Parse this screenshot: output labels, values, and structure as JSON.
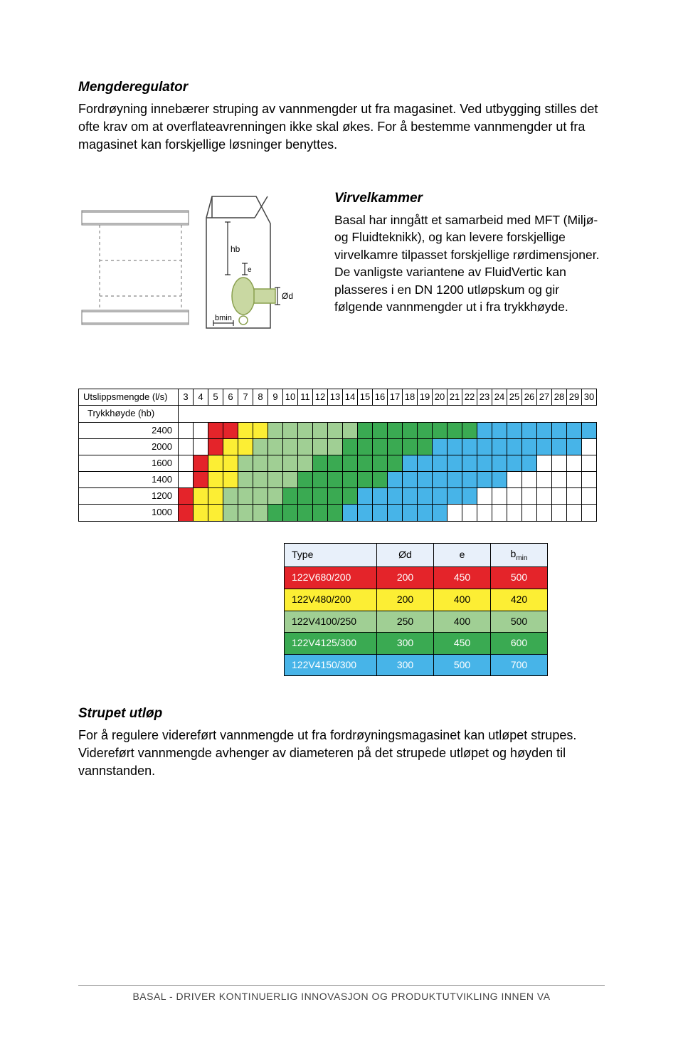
{
  "section1": {
    "heading": "Mengderegulator",
    "body": "Fordrøyning innebærer struping av vannmengder ut fra magasinet. Ved utbygging stilles det ofte krav om at overflateavrenningen ikke skal økes. For å bestemme vannmengder ut fra magasinet kan forskjellige løsninger benyttes."
  },
  "diagram_labels": {
    "hb": "hb",
    "e": "e",
    "od": "Ød",
    "bmin": "bmin"
  },
  "section2": {
    "heading": "Virvelkammer",
    "body": "Basal har inngått et samarbeid med MFT (Miljø- og Fluidteknikk), og kan levere forskjellige virvelkamre tilpasset forskjellige rørdimensjoner. De vanligste variantene av FluidVertic kan plasseres i en DN 1200 utløpskum og gir følgende vannmengder ut i fra trykkhøyde."
  },
  "colormap": {
    "header_label": "Utslippsmengde (l/s)",
    "row_label": "Trykkhøyde (hb)",
    "columns": [
      3,
      4,
      5,
      6,
      7,
      8,
      9,
      10,
      11,
      12,
      13,
      14,
      15,
      16,
      17,
      18,
      19,
      20,
      21,
      22,
      23,
      24,
      25,
      26,
      27,
      28,
      29,
      30
    ],
    "rows": [
      2400,
      2000,
      1600,
      1400,
      1200,
      1000
    ],
    "colors": {
      "r": "#e4242a",
      "y": "#fcee34",
      "l": "#a0cf94",
      "g": "#3aaa52",
      "b": "#47b4e8",
      "w": "#ffffff"
    },
    "grid": [
      [
        "w",
        "w",
        "r",
        "r",
        "y",
        "y",
        "l",
        "l",
        "l",
        "l",
        "l",
        "l",
        "g",
        "g",
        "g",
        "g",
        "g",
        "g",
        "g",
        "g",
        "b",
        "b",
        "b",
        "b",
        "b",
        "b",
        "b",
        "b"
      ],
      [
        "w",
        "w",
        "r",
        "y",
        "y",
        "l",
        "l",
        "l",
        "l",
        "l",
        "l",
        "g",
        "g",
        "g",
        "g",
        "g",
        "g",
        "b",
        "b",
        "b",
        "b",
        "b",
        "b",
        "b",
        "b",
        "b",
        "b",
        "w"
      ],
      [
        "w",
        "r",
        "y",
        "y",
        "l",
        "l",
        "l",
        "l",
        "l",
        "g",
        "g",
        "g",
        "g",
        "g",
        "g",
        "b",
        "b",
        "b",
        "b",
        "b",
        "b",
        "b",
        "b",
        "b",
        "w",
        "w",
        "w",
        "w"
      ],
      [
        "w",
        "r",
        "y",
        "y",
        "l",
        "l",
        "l",
        "l",
        "g",
        "g",
        "g",
        "g",
        "g",
        "g",
        "b",
        "b",
        "b",
        "b",
        "b",
        "b",
        "b",
        "b",
        "w",
        "w",
        "w",
        "w",
        "w",
        "w"
      ],
      [
        "r",
        "y",
        "y",
        "l",
        "l",
        "l",
        "l",
        "g",
        "g",
        "g",
        "g",
        "g",
        "b",
        "b",
        "b",
        "b",
        "b",
        "b",
        "b",
        "b",
        "w",
        "w",
        "w",
        "w",
        "w",
        "w",
        "w",
        "w"
      ],
      [
        "r",
        "y",
        "y",
        "l",
        "l",
        "l",
        "g",
        "g",
        "g",
        "g",
        "g",
        "b",
        "b",
        "b",
        "b",
        "b",
        "b",
        "b",
        "w",
        "w",
        "w",
        "w",
        "w",
        "w",
        "w",
        "w",
        "w",
        "w"
      ]
    ]
  },
  "type_table": {
    "headers": [
      "Type",
      "Ød",
      "e",
      "b"
    ],
    "b_sub": "min",
    "rows": [
      {
        "cells": [
          "122V680/200",
          "200",
          "450",
          "500"
        ],
        "bg": "#e4242a",
        "fg": "#ffffff"
      },
      {
        "cells": [
          "122V480/200",
          "200",
          "400",
          "420"
        ],
        "bg": "#fcee34",
        "fg": "#000000"
      },
      {
        "cells": [
          "122V4100/250",
          "250",
          "400",
          "500"
        ],
        "bg": "#a0cf94",
        "fg": "#000000"
      },
      {
        "cells": [
          "122V4125/300",
          "300",
          "450",
          "600"
        ],
        "bg": "#3aaa52",
        "fg": "#ffffff"
      },
      {
        "cells": [
          "122V4150/300",
          "300",
          "500",
          "700"
        ],
        "bg": "#47b4e8",
        "fg": "#ffffff"
      }
    ]
  },
  "section3": {
    "heading": "Strupet utløp",
    "body": "For å regulere videreført vannmengde ut fra fordrøyningsmagasinet kan utløpet strupes. Videreført vannmengde avhenger av diameteren på det strupede utløpet og høyden til vannstanden."
  },
  "footer": "BASAL - DRIVER KONTINUERLIG INNOVASJON OG PRODUKTUTVIKLING INNEN VA"
}
